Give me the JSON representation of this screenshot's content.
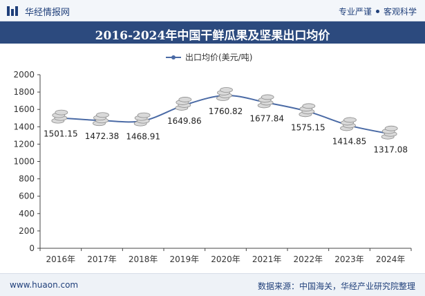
{
  "header": {
    "brand": "华经情报网",
    "slogan_left": "专业严谨",
    "slogan_right": "客观科学"
  },
  "colors": {
    "title_band": "#2c4a7e",
    "line": "#4a6aa5",
    "coin": "#d9d9d9"
  },
  "icons": [
    "logo-bars-icon",
    "legend-line-icon",
    "coin-stack-icon"
  ],
  "footer": {
    "site": "www.huaon.com",
    "source": "数据来源：中国海关，华经产业研究院整理"
  },
  "chart_data": {
    "type": "line",
    "title": "2016-2024年中国干鲜瓜果及坚果出口均价",
    "categories": [
      "2016年",
      "2017年",
      "2018年",
      "2019年",
      "2020年",
      "2021年",
      "2022年",
      "2023年",
      "2024年"
    ],
    "series": [
      {
        "name": "出口均价(美元/吨)",
        "values": [
          1501.15,
          1472.38,
          1468.91,
          1649.86,
          1760.82,
          1677.84,
          1575.15,
          1414.85,
          1317.08
        ],
        "labels": [
          "1501.15",
          "1472.38",
          "1468.91",
          "1649.86",
          "1760.82",
          "1677.84",
          "1575.15",
          "1414.85",
          "1317.08"
        ]
      }
    ],
    "yticks": [
      "0",
      "200",
      "400",
      "600",
      "800",
      "1000",
      "1200",
      "1400",
      "1600",
      "1800",
      "2000"
    ],
    "ylim": [
      0,
      2000
    ],
    "legend_position": "top-center",
    "grid": false,
    "smooth": true,
    "markers": "coin-stack"
  }
}
